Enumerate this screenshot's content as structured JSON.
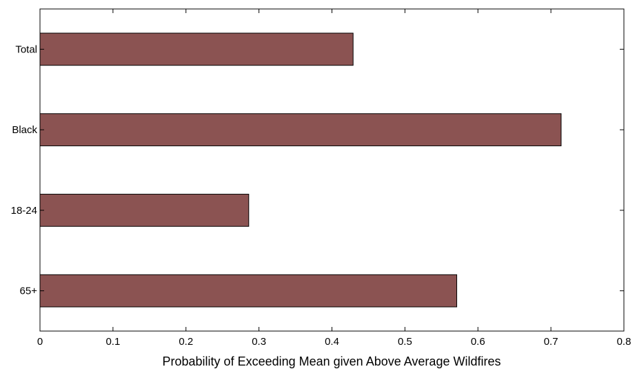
{
  "chart_data": {
    "type": "bar",
    "orientation": "horizontal",
    "categories": [
      "Total",
      "Black",
      "18-24",
      "65+"
    ],
    "values": [
      0.429,
      0.714,
      0.286,
      0.571
    ],
    "xlabel": "Probability of Exceeding Mean given Above Average Wildfires",
    "ylabel": "",
    "xlim": [
      0,
      0.8
    ],
    "xticks": [
      "0",
      "0.1",
      "0.2",
      "0.3",
      "0.4",
      "0.5",
      "0.6",
      "0.7",
      "0.8"
    ],
    "grid": false,
    "bar_color": "#8b5352",
    "bar_edge_color": "#000000"
  }
}
